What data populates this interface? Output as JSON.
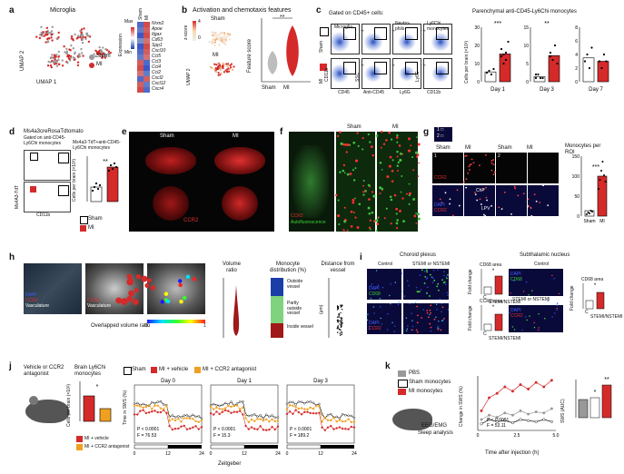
{
  "panels": {
    "a": {
      "label": "a",
      "title": "Microglia",
      "xlabel": "UMAP 1",
      "ylabel": "UMAP 2",
      "legend": [
        "Sham",
        "MI"
      ],
      "expr_label": "Expression",
      "max": "Max",
      "min": "Min",
      "cols": [
        "Sham",
        "MI"
      ],
      "genes": [
        "Nrxn2",
        "Apoe",
        "Itgax",
        "Cd63",
        "Spp1",
        "Cxcl10",
        "Ccl5",
        "Ccl3",
        "Ccl4",
        "Ccl2",
        "Cxcl2",
        "Cxcl12",
        "Cxcr4"
      ]
    },
    "b": {
      "label": "b",
      "title": "Activation and chemotaxis features",
      "sub": "Sham",
      "mi": "MI",
      "zlabel": "z-score",
      "zmax": "4",
      "zmid": "0",
      "ylabel": "UMAP 2",
      "fs": "Feature score",
      "groups": [
        "Sham",
        "MI"
      ],
      "sig": "**"
    },
    "c": {
      "label": "c",
      "title": "Gated on CD45+ cells:",
      "gates": [
        "Microglia",
        "Neutro-phils",
        "Ly6Chi monocytes"
      ],
      "sham": "Sham",
      "mi": "MI",
      "axes": [
        "CD45",
        "Anti-CD45",
        "Ly6G",
        "CD11b"
      ],
      "yaxes": [
        "CD11b",
        "SSC",
        "Ly6C"
      ],
      "barTitle": "Parenchymal anti-CD45-Ly6Chi monocytes",
      "ylabel": "Cells per brain (×10³)",
      "days": [
        "Day 1",
        "Day 3",
        "Day 7"
      ],
      "sigs": [
        "***",
        "**",
        ""
      ]
    },
    "d": {
      "label": "d",
      "title": "Ms4a3creRosaTdtomato",
      "gate": "Gated on anti-CD45-Ly6Chi monocytes",
      "bartitle": "Ms4a3-TdT+anti-CD45-Ly6Chi monocytes",
      "ylabel": "Cells per brain (×10³)",
      "yax": "Ms4A3-TdT",
      "xax": "CD11b",
      "legend": [
        "Sham",
        "MI"
      ],
      "sig": "**"
    },
    "e": {
      "label": "e",
      "sham": "Sham",
      "mi": "MI",
      "marker": "CCR2"
    },
    "f": {
      "label": "f",
      "sham": "Sham",
      "mi": "MI",
      "m1": "CCR2",
      "m2": "Autofluorescence"
    },
    "g": {
      "label": "g",
      "sham": "Sham",
      "mi": "MI",
      "n1": "1",
      "n2": "2",
      "key": [
        "1 □",
        "2 □"
      ],
      "m1": "CCR2",
      "m2": "DAPI",
      "m3": "CCR2",
      "lbl": [
        "ChP",
        "LPV"
      ],
      "bartitle": "Monocytes per ROI",
      "groups": [
        "Sham",
        "MI"
      ],
      "sig": "***",
      "ticks": [
        "150",
        "100",
        "50",
        "0"
      ]
    },
    "h": {
      "label": "h",
      "m1": "DAPI",
      "m2": "CCR2",
      "m3": "Vasculature",
      "ov": "Overlapped volume ratio",
      "cb": [
        "0",
        "1"
      ],
      "t1": "Volume ratio",
      "t2": "Monocyte distribution (%)",
      "t3": "Distance from vessel",
      "cats": [
        "Outside vessel",
        "Partly outside vessel",
        "Inside vessel"
      ],
      "unit": "(μm)"
    },
    "i": {
      "label": "i",
      "cp": "Choroid plexus",
      "stn": "Subthalamic nucleus",
      "ctrl": "Control",
      "stemi": "STEMI or NSTEMI",
      "m1": "DAPI",
      "m2": "CD68",
      "m3": "CCR2",
      "a1": "CD68 area",
      "a2": "CCR2 area",
      "a3": "CD68 area",
      "fc": "Fold change",
      "groups": [
        "C",
        "STEMI/NSTEMI"
      ],
      "sig": "*"
    },
    "j": {
      "label": "j",
      "mouse": "Vehicle or CCR2 antagonist",
      "bt": "Brain Ly6Chi monocytes",
      "ylabel": "Cells per brain (×10³)",
      "sig": "*",
      "legend": [
        "Sham",
        "MI + vehicle",
        "MI + CCR2 antagonist"
      ],
      "days": [
        "Day 0",
        "Day 1",
        "Day 3"
      ],
      "yl": "Time in SWS (%)",
      "xl": "Zeitgeber",
      "p": [
        "P < 0.0001",
        "P < 0.0001",
        "P < 0.0001"
      ],
      "F": [
        "F = 76.53",
        "F = 15.3",
        "F = 189.2"
      ],
      "xt": [
        "0",
        "12",
        "24"
      ],
      "blegend": [
        "MI + vehicle",
        "MI + CCR2 antagonist"
      ]
    },
    "k": {
      "label": "k",
      "legend": [
        "PBS",
        "Sham monocytes",
        "MI monocytes"
      ],
      "eeg": "EEG/EMG",
      "sleep": "Sleep analysis",
      "yl": "Change in SWS (%)",
      "xl": "Time after injection (h)",
      "p": "P < 0.0001",
      "F": "F = 53.11",
      "xt": [
        "0",
        "2.5",
        "5.0"
      ],
      "bl": "SWS (AUC)",
      "sigs": [
        "*",
        "**"
      ]
    }
  },
  "colors": {
    "red": "#d42a2a",
    "orange": "#f0a020",
    "blue": "#1a3ea8",
    "green": "#7fd37f",
    "darkred": "#a01818"
  }
}
